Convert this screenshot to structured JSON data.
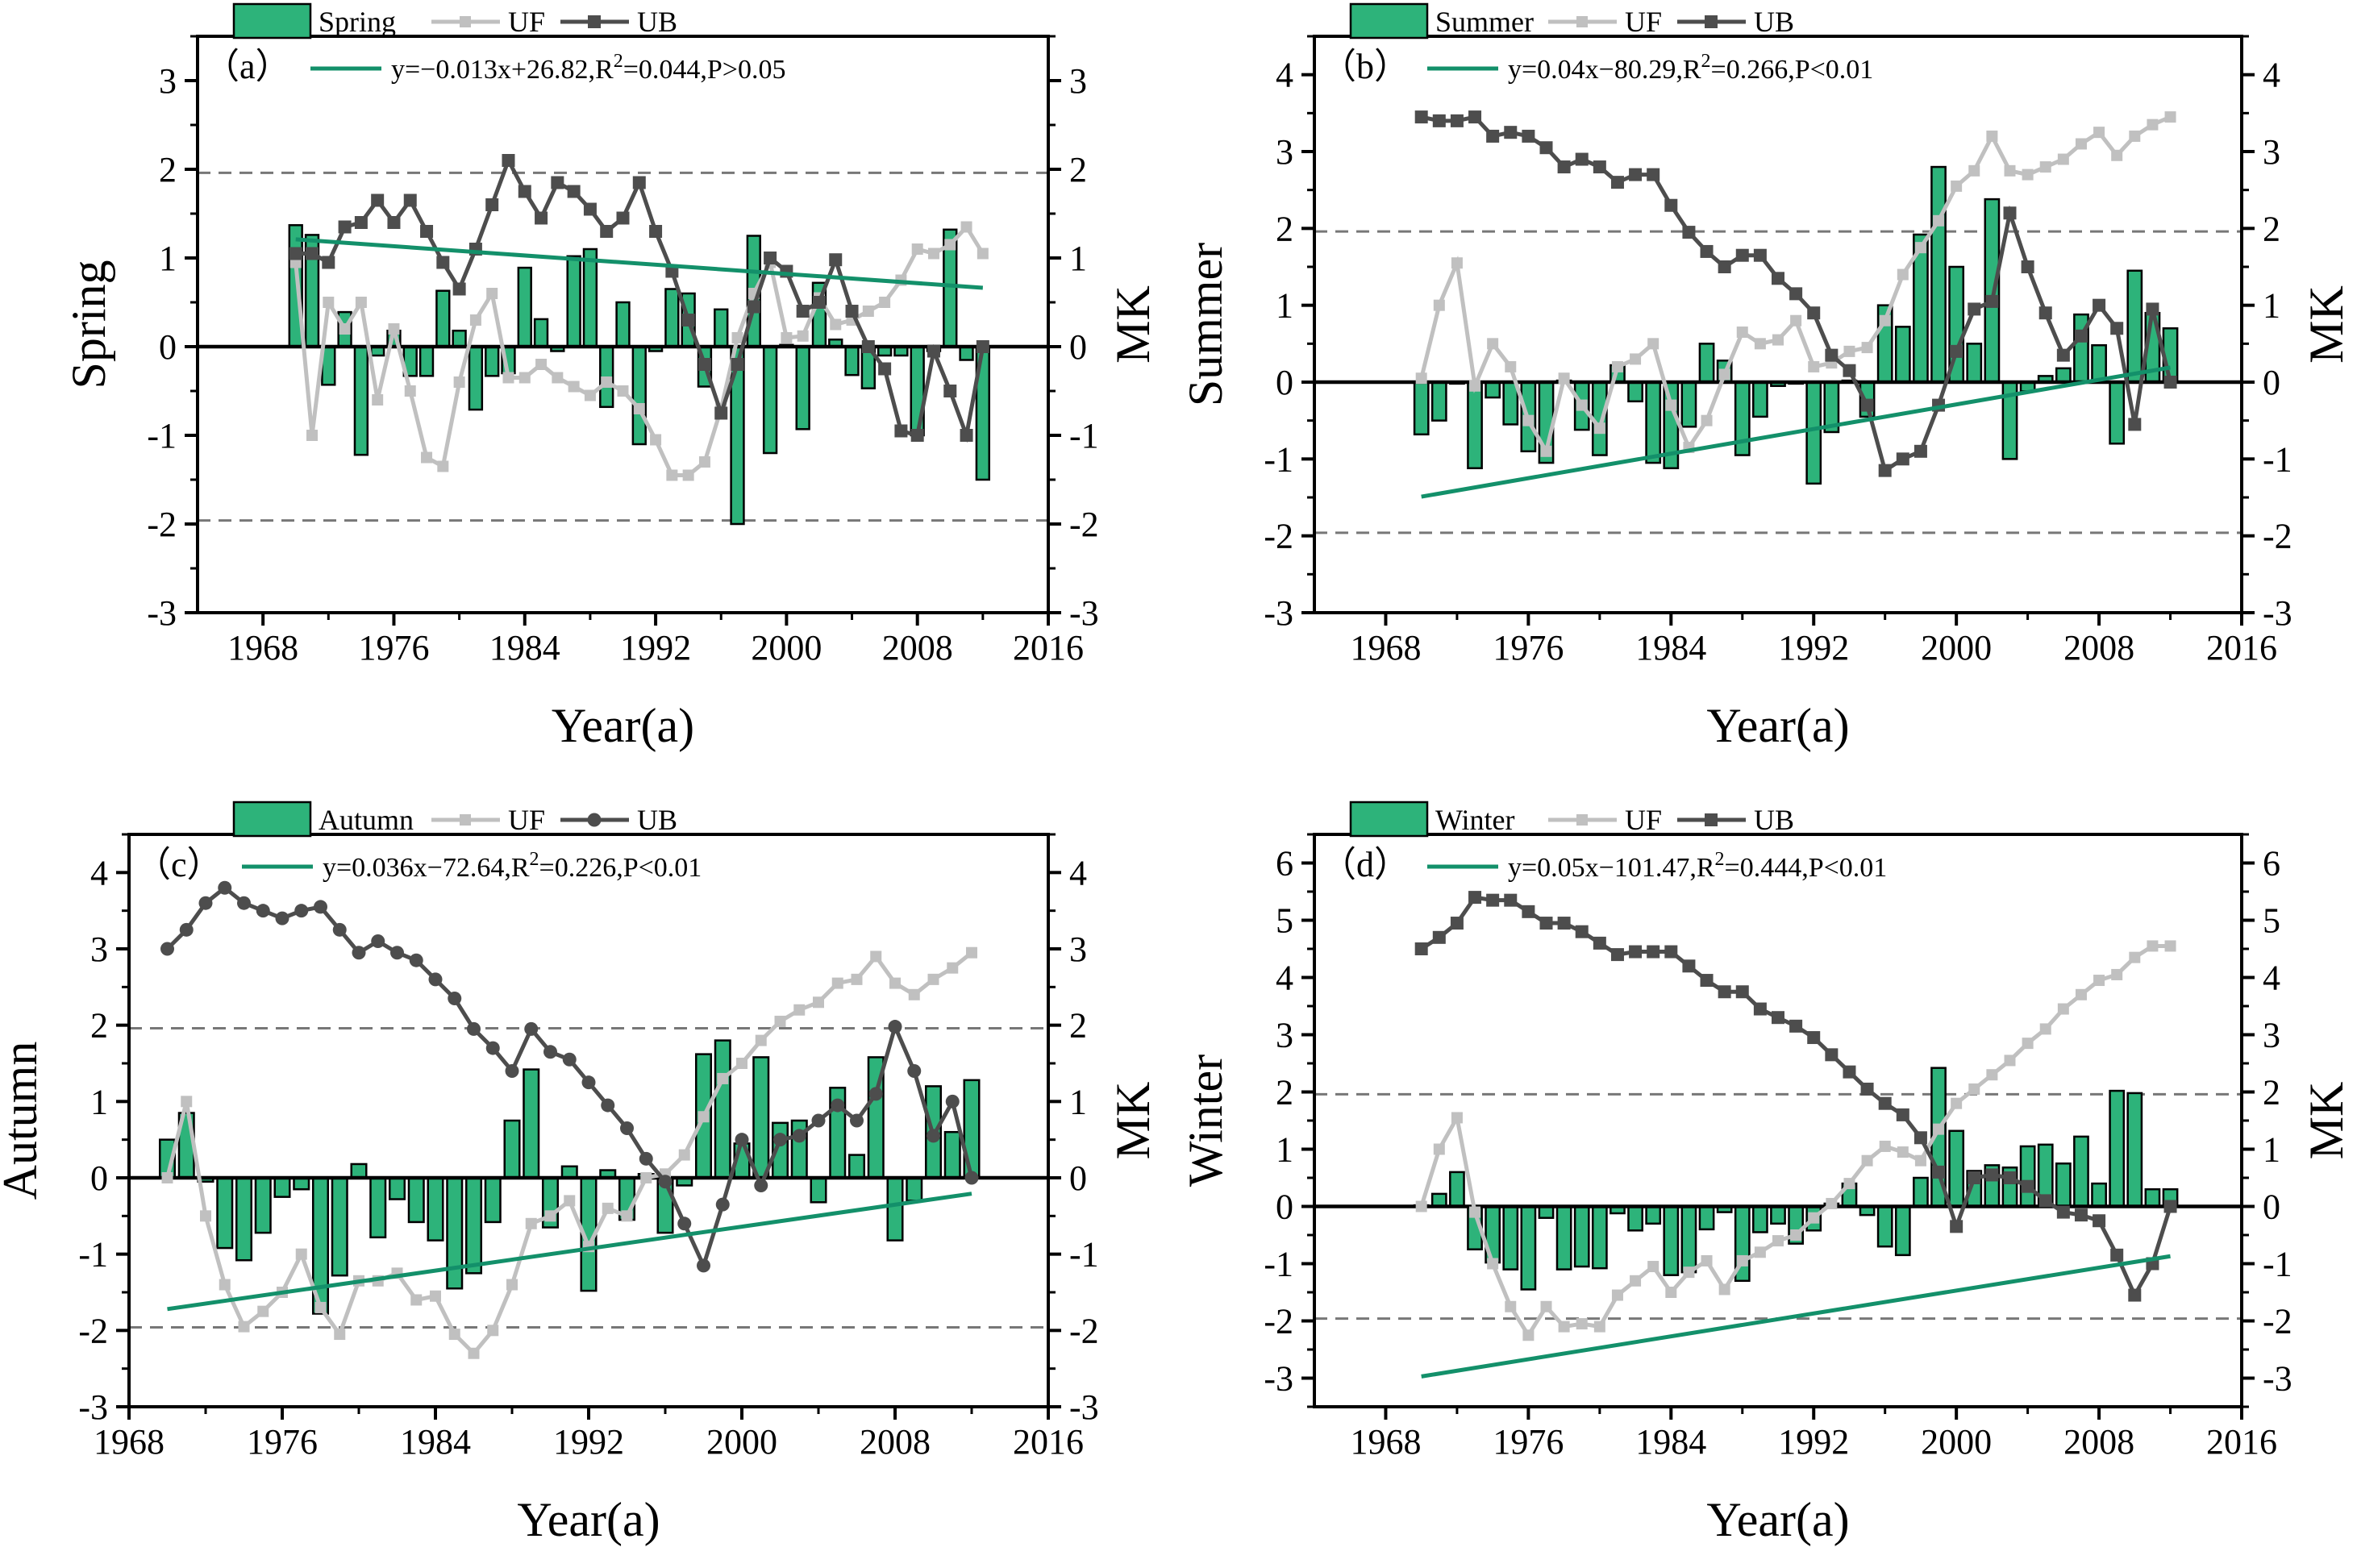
{
  "figure": {
    "year_axis_label": "Year(a)",
    "mk_axis_label": "MK"
  },
  "colors": {
    "bar": "#2db37a",
    "bar_edge": "#000000",
    "trend": "#13906a",
    "uf": "#c0c0c0",
    "ub": "#4d4d4d",
    "threshold": "#777777"
  },
  "chart_data": [
    {
      "type": "bar",
      "panel_label": "（a）",
      "title": "Spring",
      "xlabel": "Year(a)",
      "ylabel": "Spring",
      "y2label": "MK",
      "legend": {
        "bar": "Spring",
        "uf": "UF",
        "ub": "UB",
        "ub_marker": "square"
      },
      "equation": "y=−0.013x+26.82,R²=0.044,P>0.05",
      "equation_parts": {
        "pre": "y=−0.013x+26.82,R",
        "sup": "2",
        "post": "=0.044,P>0.05"
      },
      "xlim": [
        1964,
        2016
      ],
      "ylim": [
        -3,
        3.5
      ],
      "xticks": [
        1968,
        1976,
        1984,
        1992,
        2000,
        2008,
        2016
      ],
      "yticks": [
        -3,
        -2,
        -1,
        0,
        1,
        2,
        3
      ],
      "threshold": 1.96,
      "trend": {
        "slope": -0.013,
        "intercept": 26.82
      },
      "years": [
        1970,
        1971,
        1972,
        1973,
        1974,
        1975,
        1976,
        1977,
        1978,
        1979,
        1980,
        1981,
        1982,
        1983,
        1984,
        1985,
        1986,
        1987,
        1988,
        1989,
        1990,
        1991,
        1992,
        1993,
        1994,
        1995,
        1996,
        1997,
        1998,
        1999,
        2000,
        2001,
        2002,
        2003,
        2004,
        2005,
        2006,
        2007,
        2008,
        2009,
        2010,
        2011,
        2012
      ],
      "values": [
        1.37,
        1.26,
        -0.43,
        0.39,
        -1.22,
        -0.1,
        0.18,
        -0.33,
        -0.33,
        0.63,
        0.18,
        -0.71,
        -0.33,
        -0.3,
        0.89,
        0.31,
        -0.05,
        1.02,
        1.1,
        -0.68,
        0.5,
        -1.1,
        -0.05,
        0.65,
        0.6,
        -0.45,
        0.42,
        -2.0,
        1.25,
        -1.2,
        0.02,
        -0.93,
        0.72,
        0.08,
        -0.32,
        -0.47,
        -0.1,
        -0.1,
        -1.0,
        -0.05,
        1.32,
        -0.15,
        -1.5
      ],
      "uf": [
        0.95,
        -1.0,
        0.5,
        0.2,
        0.5,
        -0.6,
        0.2,
        -0.5,
        -1.25,
        -1.35,
        -0.4,
        0.3,
        0.6,
        -0.35,
        -0.35,
        -0.2,
        -0.35,
        -0.45,
        -0.55,
        -0.4,
        -0.5,
        -0.7,
        -1.05,
        -1.45,
        -1.45,
        -1.3,
        -0.7,
        0.1,
        0.6,
        0.95,
        0.1,
        0.12,
        0.55,
        0.25,
        0.3,
        0.4,
        0.5,
        0.75,
        1.1,
        1.05,
        1.15,
        1.35,
        1.05
      ],
      "ub": [
        1.05,
        1.05,
        0.95,
        1.35,
        1.4,
        1.65,
        1.4,
        1.65,
        1.3,
        0.95,
        0.65,
        1.1,
        1.6,
        2.1,
        1.75,
        1.45,
        1.85,
        1.75,
        1.55,
        1.3,
        1.45,
        1.85,
        1.3,
        0.85,
        0.3,
        -0.2,
        -0.75,
        -0.2,
        0.45,
        1.0,
        0.85,
        0.4,
        0.5,
        0.98,
        0.4,
        0.0,
        -0.25,
        -0.95,
        -1.0,
        -0.05,
        -0.5,
        -1.0,
        0.0
      ]
    },
    {
      "type": "bar",
      "panel_label": "（b）",
      "title": "Summer",
      "xlabel": "Year(a)",
      "ylabel": "Summer",
      "y2label": "MK",
      "legend": {
        "bar": "Summer",
        "uf": "UF",
        "ub": "UB",
        "ub_marker": "square"
      },
      "equation": "y=0.04x−80.29,R²=0.266,P<0.01",
      "equation_parts": {
        "pre": "y=0.04x−80.29,R",
        "sup": "2",
        "post": "=0.266,P<0.01"
      },
      "xlim": [
        1964,
        2016
      ],
      "ylim": [
        -3,
        4.5
      ],
      "xticks": [
        1968,
        1976,
        1984,
        1992,
        2000,
        2008,
        2016
      ],
      "yticks": [
        -3,
        -2,
        -1,
        0,
        1,
        2,
        3,
        4
      ],
      "threshold": 1.96,
      "trend": {
        "slope": 0.04,
        "intercept": -80.29
      },
      "years": [
        1970,
        1971,
        1972,
        1973,
        1974,
        1975,
        1976,
        1977,
        1978,
        1979,
        1980,
        1981,
        1982,
        1983,
        1984,
        1985,
        1986,
        1987,
        1988,
        1989,
        1990,
        1991,
        1992,
        1993,
        1994,
        1995,
        1996,
        1997,
        1998,
        1999,
        2000,
        2001,
        2002,
        2003,
        2004,
        2005,
        2006,
        2007,
        2008,
        2009,
        2010,
        2011,
        2012
      ],
      "values": [
        -0.68,
        -0.5,
        -0.02,
        -1.12,
        -0.2,
        -0.55,
        -0.9,
        -1.05,
        0.02,
        -0.62,
        -0.95,
        0.22,
        -0.25,
        -1.05,
        -1.12,
        -0.58,
        0.5,
        0.28,
        -0.95,
        -0.45,
        -0.05,
        -0.02,
        -1.32,
        -0.65,
        0.02,
        -0.45,
        1.0,
        0.72,
        1.92,
        2.8,
        1.5,
        0.5,
        2.38,
        -1.0,
        -0.12,
        0.08,
        0.18,
        0.88,
        0.48,
        -0.8,
        1.45,
        0.9,
        0.7
      ],
      "uf": [
        0.05,
        1.0,
        1.55,
        -0.05,
        0.5,
        0.2,
        -0.5,
        -0.9,
        0.05,
        -0.3,
        -0.6,
        0.2,
        0.3,
        0.5,
        -0.3,
        -0.85,
        -0.5,
        0.1,
        0.65,
        0.5,
        0.55,
        0.8,
        0.2,
        0.25,
        0.4,
        0.45,
        0.8,
        1.4,
        1.75,
        2.1,
        2.55,
        2.75,
        3.2,
        2.75,
        2.7,
        2.8,
        2.9,
        3.1,
        3.25,
        2.95,
        3.2,
        3.35,
        3.45
      ],
      "ub": [
        3.45,
        3.4,
        3.4,
        3.45,
        3.2,
        3.25,
        3.2,
        3.05,
        2.8,
        2.9,
        2.8,
        2.6,
        2.7,
        2.7,
        2.3,
        1.95,
        1.7,
        1.5,
        1.65,
        1.65,
        1.35,
        1.15,
        0.9,
        0.35,
        0.15,
        -0.3,
        -1.15,
        -1.0,
        -0.9,
        -0.3,
        0.4,
        0.95,
        1.05,
        2.2,
        1.5,
        0.9,
        0.35,
        0.6,
        1.0,
        0.7,
        -0.55,
        0.95,
        0.0
      ]
    },
    {
      "type": "bar",
      "panel_label": "（c）",
      "title": "Autumn",
      "xlabel": "Year(a)",
      "ylabel": "Autumn",
      "y2label": "MK",
      "legend": {
        "bar": "Autumn",
        "uf": "UF",
        "ub": "UB",
        "ub_marker": "circle"
      },
      "equation": "y=0.036x−72.64,R²=0.226,P<0.01",
      "equation_parts": {
        "pre": "y=0.036x−72.64,R",
        "sup": "2",
        "post": "=0.226,P<0.01"
      },
      "xlim": [
        1968,
        2016
      ],
      "ylim": [
        -3,
        4.5
      ],
      "xticks": [
        1968,
        1976,
        1984,
        1992,
        2000,
        2008,
        2016
      ],
      "yticks": [
        -3,
        -2,
        -1,
        0,
        1,
        2,
        3,
        4
      ],
      "threshold": 1.96,
      "trend": {
        "slope": 0.036,
        "intercept": -72.64
      },
      "years": [
        1970,
        1971,
        1972,
        1973,
        1974,
        1975,
        1976,
        1977,
        1978,
        1979,
        1980,
        1981,
        1982,
        1983,
        1984,
        1985,
        1986,
        1987,
        1988,
        1989,
        1990,
        1991,
        1992,
        1993,
        1994,
        1995,
        1996,
        1997,
        1998,
        1999,
        2000,
        2001,
        2002,
        2003,
        2004,
        2005,
        2006,
        2007,
        2008,
        2009,
        2010,
        2011,
        2012
      ],
      "values": [
        0.5,
        0.85,
        -0.05,
        -0.92,
        -1.08,
        -0.72,
        -0.25,
        -0.15,
        -1.78,
        -1.28,
        0.18,
        -0.78,
        -0.28,
        -0.58,
        -0.82,
        -1.45,
        -1.25,
        -0.58,
        0.75,
        1.42,
        -0.65,
        0.15,
        -1.48,
        0.1,
        -0.55,
        0.05,
        -0.72,
        -0.1,
        1.62,
        1.8,
        0.45,
        1.58,
        0.72,
        0.75,
        -0.32,
        1.18,
        0.3,
        1.58,
        -0.82,
        -0.3,
        1.2,
        0.6,
        1.28
      ],
      "uf": [
        0.0,
        1.0,
        -0.5,
        -1.4,
        -1.95,
        -1.75,
        -1.5,
        -1.0,
        -1.7,
        -2.05,
        -1.35,
        -1.35,
        -1.25,
        -1.6,
        -1.55,
        -2.05,
        -2.3,
        -2.0,
        -1.4,
        -0.6,
        -0.5,
        -0.3,
        -0.9,
        -0.4,
        -0.5,
        0.0,
        0.05,
        0.3,
        0.8,
        1.3,
        1.5,
        1.8,
        2.05,
        2.2,
        2.3,
        2.55,
        2.6,
        2.9,
        2.55,
        2.4,
        2.6,
        2.75,
        2.95
      ],
      "ub": [
        3.0,
        3.25,
        3.6,
        3.8,
        3.6,
        3.5,
        3.4,
        3.5,
        3.55,
        3.25,
        2.95,
        3.1,
        2.95,
        2.85,
        2.6,
        2.35,
        1.95,
        1.7,
        1.4,
        1.95,
        1.65,
        1.55,
        1.25,
        0.95,
        0.65,
        0.25,
        -0.05,
        -0.6,
        -1.15,
        -0.35,
        0.5,
        -0.1,
        0.5,
        0.55,
        0.75,
        0.95,
        0.75,
        1.1,
        1.98,
        1.4,
        0.55,
        1.0,
        0.0
      ]
    },
    {
      "type": "bar",
      "panel_label": "（d）",
      "title": "Winter",
      "xlabel": "Year(a)",
      "ylabel": "Winter",
      "y2label": "MK",
      "legend": {
        "bar": "Winter",
        "uf": "UF",
        "ub": "UB",
        "ub_marker": "square"
      },
      "equation": "y=0.05x−101.47,R²=0.444,P<0.01",
      "equation_parts": {
        "pre": "y=0.05x−101.47,R",
        "sup": "2",
        "post": "=0.444,P<0.01"
      },
      "xlim": [
        1964,
        2016
      ],
      "ylim": [
        -3.5,
        6.5
      ],
      "xticks": [
        1968,
        1976,
        1984,
        1992,
        2000,
        2008,
        2016
      ],
      "yticks": [
        -3,
        -2,
        -1,
        0,
        1,
        2,
        3,
        4,
        5,
        6
      ],
      "threshold": 1.96,
      "trend": {
        "slope": 0.05,
        "intercept": -101.47
      },
      "years": [
        1970,
        1971,
        1972,
        1973,
        1974,
        1975,
        1976,
        1977,
        1978,
        1979,
        1980,
        1981,
        1982,
        1983,
        1984,
        1985,
        1986,
        1987,
        1988,
        1989,
        1990,
        1991,
        1992,
        1993,
        1994,
        1995,
        1996,
        1997,
        1998,
        1999,
        2000,
        2001,
        2002,
        2003,
        2004,
        2005,
        2006,
        2007,
        2008,
        2009,
        2010,
        2011,
        2012
      ],
      "values": [
        0.02,
        0.22,
        0.6,
        -0.75,
        -0.98,
        -1.1,
        -1.45,
        -0.2,
        -1.1,
        -1.05,
        -1.08,
        -0.12,
        -0.42,
        -0.3,
        -1.2,
        -1.15,
        -0.4,
        -0.1,
        -1.3,
        -0.45,
        -0.3,
        -0.65,
        -0.42,
        0.05,
        0.4,
        -0.15,
        -0.7,
        -0.85,
        0.5,
        2.42,
        1.32,
        0.62,
        0.72,
        0.68,
        1.05,
        1.08,
        0.75,
        1.22,
        0.4,
        2.02,
        1.98,
        0.3,
        0.3
      ],
      "uf": [
        0.0,
        1.0,
        1.55,
        -0.1,
        -1.0,
        -1.75,
        -2.25,
        -1.75,
        -2.1,
        -2.05,
        -2.1,
        -1.55,
        -1.3,
        -1.05,
        -1.5,
        -1.15,
        -0.95,
        -1.45,
        -0.95,
        -0.8,
        -0.6,
        -0.5,
        -0.2,
        0.05,
        0.4,
        0.8,
        1.05,
        0.95,
        0.8,
        1.35,
        1.8,
        2.05,
        2.3,
        2.55,
        2.85,
        3.1,
        3.45,
        3.7,
        3.95,
        4.05,
        4.35,
        4.55,
        4.55
      ],
      "ub": [
        4.5,
        4.7,
        4.95,
        5.4,
        5.35,
        5.35,
        5.15,
        4.95,
        4.95,
        4.8,
        4.6,
        4.4,
        4.45,
        4.45,
        4.45,
        4.2,
        3.95,
        3.75,
        3.75,
        3.45,
        3.3,
        3.15,
        2.95,
        2.65,
        2.35,
        2.05,
        1.8,
        1.6,
        1.2,
        0.6,
        -0.35,
        0.5,
        0.55,
        0.5,
        0.35,
        0.1,
        -0.1,
        -0.15,
        -0.25,
        -0.85,
        -1.55,
        -1.0,
        0.0
      ]
    }
  ]
}
